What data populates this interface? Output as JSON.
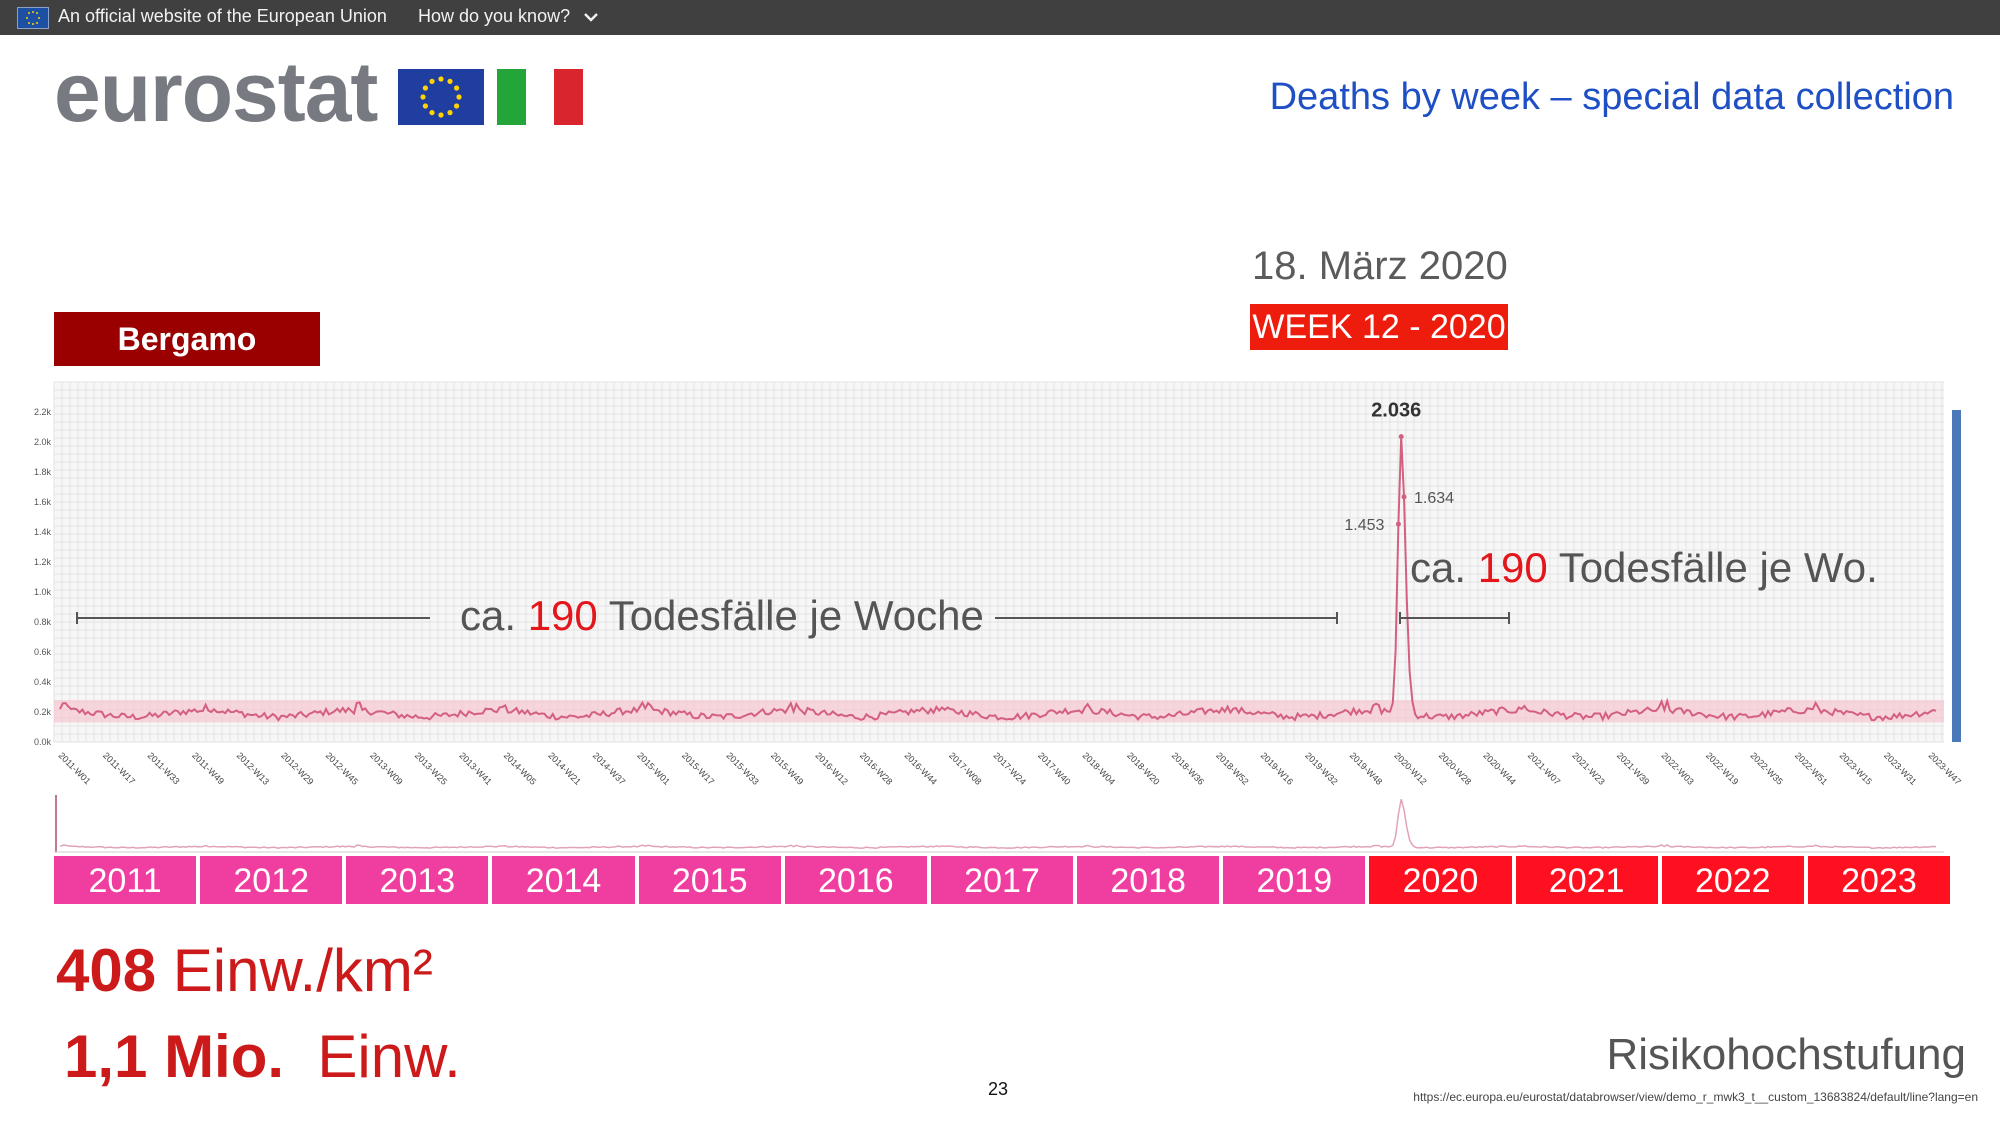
{
  "topbar": {
    "official_text": "An official website of the European Union",
    "how_text": "How do you know?",
    "chevron_icon": "chevron-down-icon",
    "flag_icon": "eu-flag-icon"
  },
  "header": {
    "logo_text": "eurostat",
    "title": "Deaths by week – special data collection"
  },
  "highlight": {
    "date": "18. März 2020",
    "week": "WEEK 12 - 2020"
  },
  "region": "Bergamo",
  "annotations": {
    "left_prefix": "ca. ",
    "left_number": "190",
    "left_suffix": " Todesfälle je Woche",
    "right_prefix": "ca. ",
    "right_number": "190",
    "right_suffix": " Todesfälle je Wo."
  },
  "stats": {
    "density_number": "408",
    "density_unit": " Einw./km²",
    "population_number": "1,1 Mio.",
    "population_unit": "  Einw."
  },
  "footer": {
    "risk_label": "Risikohochstufung",
    "page_number": "23",
    "source_url": "https://ec.europa.eu/eurostat/databrowser/view/demo_r_mwk3_t__custom_13683824/default/line?lang=en"
  },
  "colors": {
    "line": "#d4607f",
    "band": "#f6c9d3",
    "pink_year": "#f03ea0",
    "red_year": "#ff1020",
    "title_blue": "#1f4fc4"
  },
  "years": [
    {
      "label": "2011",
      "style": "pink"
    },
    {
      "label": "2012",
      "style": "pink"
    },
    {
      "label": "2013",
      "style": "pink"
    },
    {
      "label": "2014",
      "style": "pink"
    },
    {
      "label": "2015",
      "style": "pink"
    },
    {
      "label": "2016",
      "style": "pink"
    },
    {
      "label": "2017",
      "style": "pink"
    },
    {
      "label": "2018",
      "style": "pink"
    },
    {
      "label": "2019",
      "style": "pink"
    },
    {
      "label": "2020",
      "style": "red"
    },
    {
      "label": "2021",
      "style": "red"
    },
    {
      "label": "2022",
      "style": "red"
    },
    {
      "label": "2023",
      "style": "red"
    }
  ],
  "chart_data": {
    "type": "line",
    "series": [
      {
        "name": "",
        "values": []
      }
    ],
    "y_ticks": [
      "0.0k",
      "0.2k",
      "0.4k",
      "0.6k",
      "0.8k",
      "1.0k",
      "1.2k",
      "1.4k",
      "1.6k",
      "1.8k",
      "2.0k",
      "2.2k"
    ],
    "ylim": [
      0,
      2200
    ],
    "x_ticks": [
      "2011-W01",
      "2011-W17",
      "2011-W33",
      "2011-W49",
      "2012-W13",
      "2012-W29",
      "2012-W45",
      "2013-W09",
      "2013-W25",
      "2013-W41",
      "2014-W05",
      "2014-W21",
      "2014-W37",
      "2015-W01",
      "2015-W17",
      "2015-W33",
      "2015-W49",
      "2016-W12",
      "2016-W28",
      "2016-W44",
      "2017-W08",
      "2017-W24",
      "2017-W40",
      "2018-W04",
      "2018-W20",
      "2018-W36",
      "2018-W52",
      "2019-W16",
      "2019-W32",
      "2019-W48",
      "2020-W12",
      "2020-W28",
      "2020-W44",
      "2021-W07",
      "2021-W23",
      "2021-W39",
      "2022-W03",
      "2022-W19",
      "2022-W35",
      "2022-W51",
      "2023-W15",
      "2023-W31",
      "2023-W47"
    ],
    "baseline": 190,
    "band": [
      130,
      280
    ],
    "peak_labels": [
      {
        "week": "2020-W11",
        "value": 1453,
        "label": "1.453"
      },
      {
        "week": "2020-W12",
        "value": 2036,
        "label": "2.036"
      },
      {
        "week": "2020-W13",
        "value": 1634,
        "label": "1.634"
      }
    ],
    "grid": true
  }
}
